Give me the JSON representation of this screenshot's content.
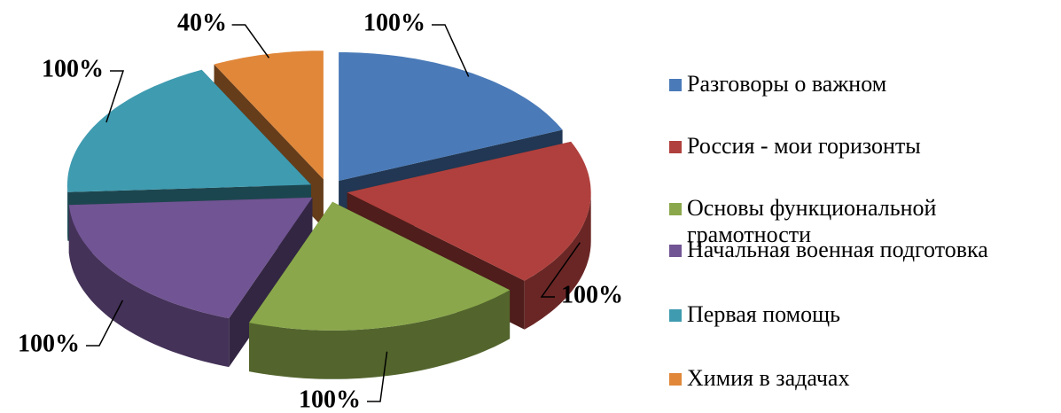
{
  "chart_data": {
    "type": "pie",
    "categories": [
      "Разговоры о важном",
      "Россия - мои горизонты",
      "Основы функциональной грамотности",
      "Начальная военная подготовка",
      "Первая помощь",
      "Химия в задачах"
    ],
    "values": [
      100,
      100,
      100,
      100,
      100,
      40
    ],
    "value_labels": [
      "100%",
      "100%",
      "100%",
      "100%",
      "100%",
      "40%"
    ],
    "colors": [
      "#4a7ab8",
      "#b0403d",
      "#8aa84b",
      "#715493",
      "#3f9bb0",
      "#e0873a"
    ],
    "legend": "right"
  }
}
